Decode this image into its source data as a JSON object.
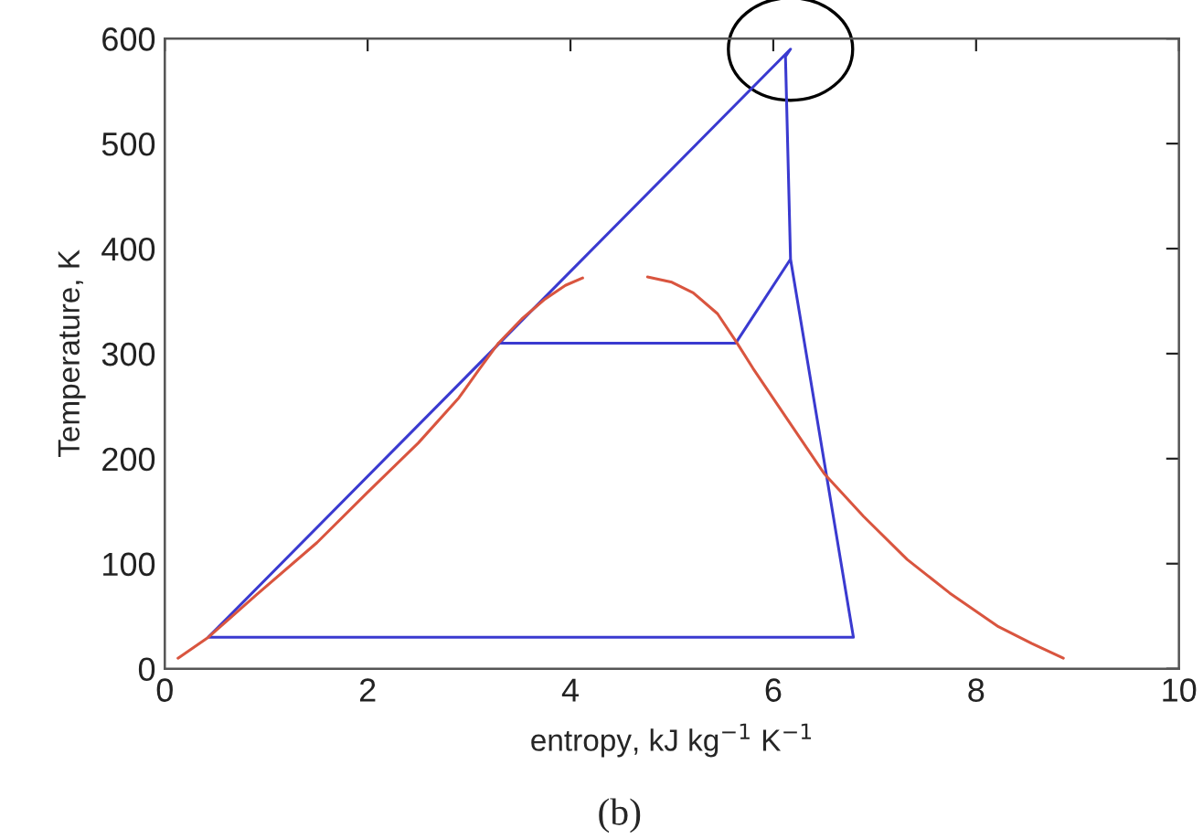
{
  "chart_data": {
    "type": "line",
    "xlabel": "entropy, kJ kg$^{−1}$ K$^{−1}$",
    "ylabel": "Temperature, K",
    "annotations": [
      "(b)"
    ],
    "series": [
      {
        "color": "#3a3ad0",
        "x": [
          3.29,
          5.63,
          6.17,
          6.12,
          6.17,
          0.43,
          6.79,
          6.17
        ],
        "values": [
          310,
          310,
          390,
          583,
          590,
          30,
          30,
          390
        ]
      },
      {
        "color": "#d9553f",
        "x": [
          0.13,
          0.43,
          0.9,
          1.5,
          2.0,
          2.5,
          2.9,
          3.1,
          3.29,
          3.52,
          3.75,
          3.95,
          4.12,
          4.44,
          4.76,
          5.0,
          5.21,
          5.45,
          5.63,
          5.8,
          6.17,
          6.5,
          6.89,
          7.32,
          7.74,
          8.22,
          8.55,
          8.86
        ],
        "values": [
          10,
          30,
          70,
          120,
          168,
          215,
          258,
          285,
          310,
          333,
          352,
          365,
          372,
          null,
          373,
          368,
          358,
          338,
          312,
          286,
          233,
          186,
          145,
          104,
          72,
          40,
          24,
          10
        ]
      }
    ],
    "xlim": [
      0,
      10
    ],
    "ylim": [
      0,
      600
    ],
    "xticks": [
      0,
      2,
      4,
      6,
      8,
      10
    ],
    "yticks": [
      0,
      100,
      200,
      300,
      400,
      500,
      600
    ],
    "line_style": "solid"
  }
}
